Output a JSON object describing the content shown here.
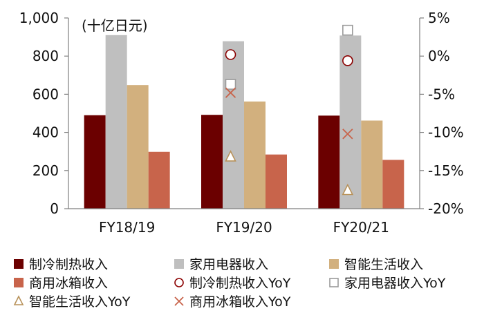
{
  "chart_data": {
    "type": "bar",
    "unit_label": "(十亿日元)",
    "categories": [
      "FY18/19",
      "FY19/20",
      "FY20/21"
    ],
    "ylim": [
      0,
      1000
    ],
    "yticks": [
      "0",
      "200",
      "400",
      "600",
      "800",
      "1,000"
    ],
    "y2lim": [
      -20,
      5
    ],
    "y2ticks": [
      "-20%",
      "-15%",
      "-10%",
      "-5%",
      "0%",
      "5%"
    ],
    "grid": false,
    "legend_position": "bottom",
    "series": [
      {
        "name": "制冷制热收入",
        "type": "bar",
        "axis": "left",
        "color": "#6b0000",
        "values": [
          490,
          492,
          488
        ]
      },
      {
        "name": "家用电器收入",
        "type": "bar",
        "axis": "left",
        "color": "#bfbfbf",
        "values": [
          910,
          878,
          908
        ]
      },
      {
        "name": "智能生活收入",
        "type": "bar",
        "axis": "left",
        "color": "#d2b07e",
        "values": [
          648,
          562,
          462
        ]
      },
      {
        "name": "商用冰箱收入",
        "type": "bar",
        "axis": "left",
        "color": "#c8644b",
        "values": [
          298,
          284,
          256
        ]
      }
    ],
    "yoy_series": [
      {
        "name": "制冷制热收入YoY",
        "marker": "circle",
        "axis": "right",
        "color": "#8b0000",
        "values": [
          null,
          0.2,
          -0.6
        ]
      },
      {
        "name": "家用电器收入YoY",
        "marker": "square",
        "axis": "right",
        "color": "#9a9a9a",
        "values": [
          null,
          -3.7,
          3.4
        ]
      },
      {
        "name": "智能生活收入YoY",
        "marker": "triangle",
        "axis": "right",
        "color": "#b8925a",
        "values": [
          null,
          -13.2,
          -17.6
        ]
      },
      {
        "name": "商用冰箱收入YoY",
        "marker": "x",
        "axis": "right",
        "color": "#c8644b",
        "values": [
          null,
          -4.8,
          -10.2
        ]
      }
    ]
  }
}
